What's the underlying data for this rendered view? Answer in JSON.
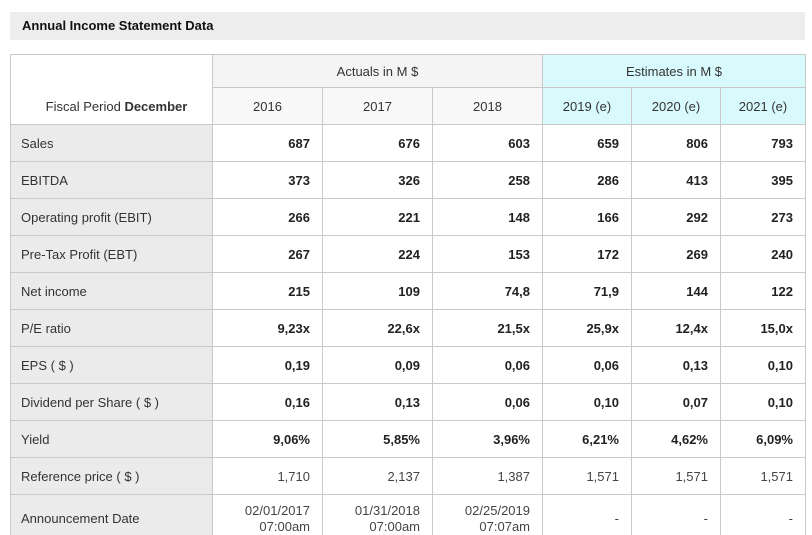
{
  "title": "Annual Income Statement Data",
  "table": {
    "fiscal_period_label": "Fiscal Period",
    "fiscal_period_value": "December",
    "group_headers": {
      "actuals": "Actuals in M $",
      "estimates": "Estimates in M $"
    },
    "columns": [
      "2016",
      "2017",
      "2018",
      "2019 (e)",
      "2020 (e)",
      "2021 (e)"
    ],
    "rows": [
      {
        "label": "Sales",
        "values": [
          "687",
          "676",
          "603",
          "659",
          "806",
          "793"
        ],
        "bold": true,
        "multiline": false
      },
      {
        "label": "EBITDA",
        "values": [
          "373",
          "326",
          "258",
          "286",
          "413",
          "395"
        ],
        "bold": true,
        "multiline": false
      },
      {
        "label": "Operating profit (EBIT)",
        "values": [
          "266",
          "221",
          "148",
          "166",
          "292",
          "273"
        ],
        "bold": true,
        "multiline": false
      },
      {
        "label": "Pre-Tax Profit (EBT)",
        "values": [
          "267",
          "224",
          "153",
          "172",
          "269",
          "240"
        ],
        "bold": true,
        "multiline": false
      },
      {
        "label": "Net income",
        "values": [
          "215",
          "109",
          "74,8",
          "71,9",
          "144",
          "122"
        ],
        "bold": true,
        "multiline": false
      },
      {
        "label": "P/E ratio",
        "values": [
          "9,23x",
          "22,6x",
          "21,5x",
          "25,9x",
          "12,4x",
          "15,0x"
        ],
        "bold": true,
        "multiline": false
      },
      {
        "label": "EPS ( $ )",
        "values": [
          "0,19",
          "0,09",
          "0,06",
          "0,06",
          "0,13",
          "0,10"
        ],
        "bold": true,
        "multiline": false
      },
      {
        "label": "Dividend per Share ( $ )",
        "values": [
          "0,16",
          "0,13",
          "0,06",
          "0,10",
          "0,07",
          "0,10"
        ],
        "bold": true,
        "multiline": false
      },
      {
        "label": "Yield",
        "values": [
          "9,06%",
          "5,85%",
          "3,96%",
          "6,21%",
          "4,62%",
          "6,09%"
        ],
        "bold": true,
        "multiline": false
      },
      {
        "label": "Reference price ( $ )",
        "values": [
          "1,710",
          "2,137",
          "1,387",
          "1,571",
          "1,571",
          "1,571"
        ],
        "bold": false,
        "multiline": false
      },
      {
        "label": "Announcement Date",
        "values": [
          "02/01/2017\n07:00am",
          "01/31/2018\n07:00am",
          "02/25/2019\n07:07am",
          "-",
          "-",
          "-"
        ],
        "bold": false,
        "multiline": true
      }
    ]
  },
  "colors": {
    "title_bar_bg": "#ededed",
    "row_label_bg": "#ebebeb",
    "actuals_header_bg": "#f4f4f4",
    "estimates_header_bg": "#d9fafd",
    "border": "#c9c9c9"
  }
}
